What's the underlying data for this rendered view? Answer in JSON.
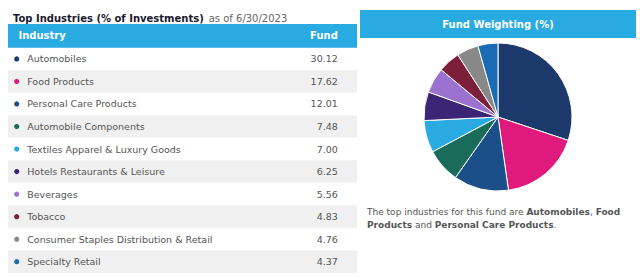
{
  "chart_data": {
    "type": "pie",
    "title": "Top Industries (% of Investments)",
    "subtitle": "as of 6/30/2023",
    "column_headers": [
      "Industry",
      "Fund",
      "Fund Weighting (%)"
    ],
    "categories": [
      "Automobiles",
      "Food Products",
      "Personal Care Products",
      "Automobile Components",
      "Textiles Apparel & Luxury Goods",
      "Hotels Restaurants & Leisure",
      "Beverages",
      "Tobacco",
      "Consumer Staples Distribution & Retail",
      "Specialty Retail"
    ],
    "values": [
      30.12,
      17.62,
      12.01,
      7.48,
      7.0,
      6.25,
      5.56,
      4.83,
      4.76,
      4.37
    ],
    "value_labels": [
      "30.12",
      "17.62",
      "12.01",
      "7.48",
      "7.00",
      "6.25",
      "5.56",
      "4.83",
      "4.76",
      "4.37"
    ],
    "colors": [
      "#1B3A6B",
      "#E0197D",
      "#1B4F8A",
      "#1A6B5A",
      "#29ABE2",
      "#3D2575",
      "#9B72CF",
      "#7B1F3A",
      "#888888",
      "#1B6CB5"
    ],
    "annotation": "The top industries for this fund are Automobiles, Food Products and Personal Care Products."
  }
}
